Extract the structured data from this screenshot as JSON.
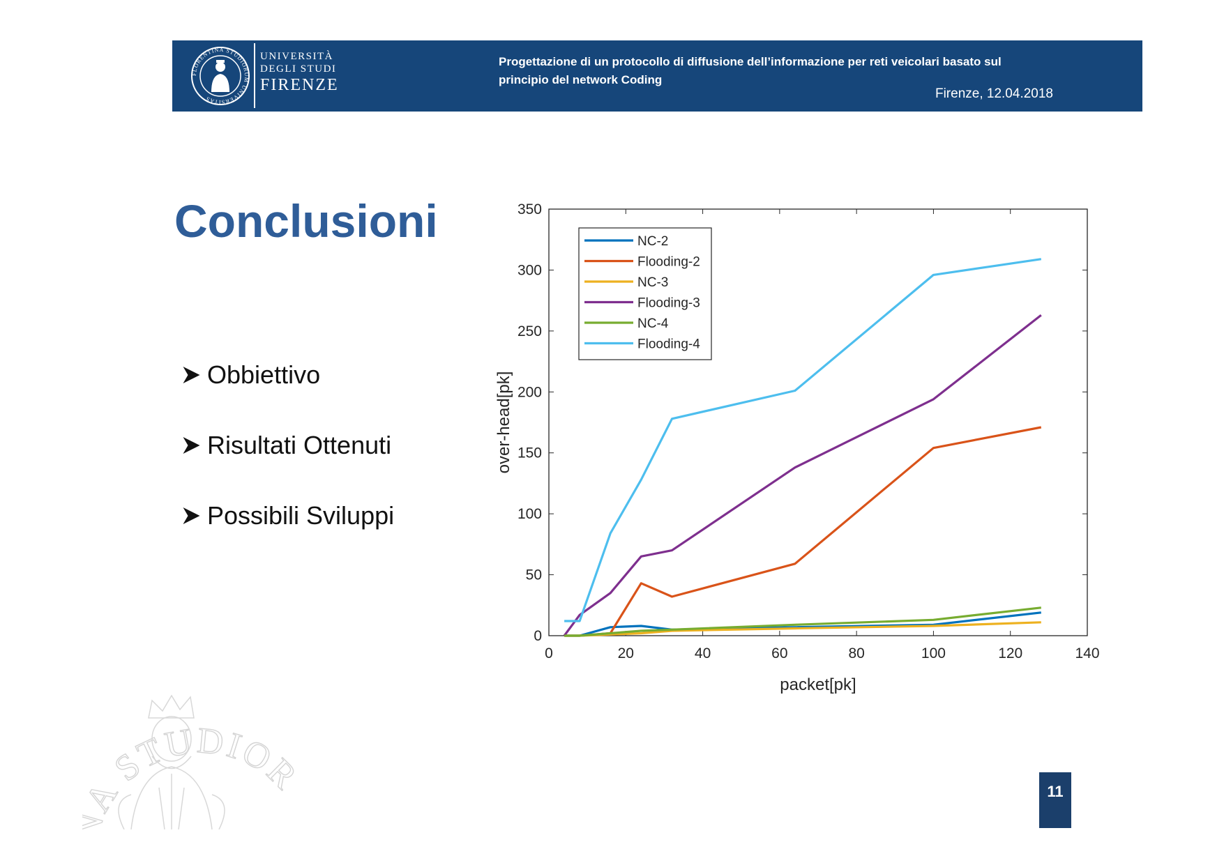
{
  "header": {
    "university": {
      "line1": "UNIVERSITÀ",
      "line2": "DEGLI STUDI",
      "line3": "FIRENZE"
    },
    "title_line1": "Progettazione di un protocollo di diffusione dell’informazione per reti veicolari basato sul",
    "title_line2": "principio del network Coding",
    "date": "Firenze, 12.04.2018",
    "seal_text": "FLORENTINA STUDIORUM UNIVERSITAS"
  },
  "slide": {
    "title": "Conclusioni",
    "bullets": [
      "Obbiettivo",
      "Risultati Ottenuti",
      "Possibili Sviluppi"
    ]
  },
  "watermark_text": "INA STUDIOR",
  "page_number": "11",
  "colors": {
    "header_bg": "#16467a",
    "title": "#2f5d98",
    "page_number_bg": "#1b3f6b"
  },
  "chart_data": {
    "type": "line",
    "xlabel": "packet[pk]",
    "ylabel": "over-head[pk]",
    "xlim": [
      0,
      140
    ],
    "ylim": [
      0,
      350
    ],
    "xticks": [
      0,
      20,
      40,
      60,
      80,
      100,
      120,
      140
    ],
    "yticks": [
      0,
      50,
      100,
      150,
      200,
      250,
      300,
      350
    ],
    "legend_position": "top-left",
    "grid": false,
    "series": [
      {
        "name": "NC-2",
        "color": "#0072bd",
        "x": [
          4,
          8,
          16,
          24,
          32,
          64,
          100,
          128
        ],
        "y": [
          0,
          0,
          7,
          8,
          5,
          7,
          9,
          19
        ]
      },
      {
        "name": "Flooding-2",
        "color": "#d95319",
        "x": [
          4,
          8,
          16,
          24,
          32,
          64,
          100,
          128
        ],
        "y": [
          0,
          0,
          2,
          43,
          32,
          59,
          154,
          171
        ]
      },
      {
        "name": "NC-3",
        "color": "#edb120",
        "x": [
          4,
          8,
          16,
          24,
          32,
          64,
          100,
          128
        ],
        "y": [
          0,
          0,
          1,
          2,
          4,
          6,
          8,
          11
        ]
      },
      {
        "name": "Flooding-3",
        "color": "#7e2f8e",
        "x": [
          4,
          8,
          16,
          24,
          32,
          64,
          100,
          128
        ],
        "y": [
          0,
          17,
          35,
          65,
          70,
          138,
          194,
          263
        ]
      },
      {
        "name": "NC-4",
        "color": "#77ac30",
        "x": [
          4,
          8,
          16,
          24,
          32,
          64,
          100,
          128
        ],
        "y": [
          0,
          0,
          2,
          4,
          5,
          9,
          13,
          23
        ]
      },
      {
        "name": "Flooding-4",
        "color": "#4dbeee",
        "x": [
          4,
          8,
          16,
          24,
          32,
          64,
          100,
          128
        ],
        "y": [
          12,
          12,
          84,
          128,
          178,
          201,
          296,
          309
        ]
      }
    ]
  }
}
